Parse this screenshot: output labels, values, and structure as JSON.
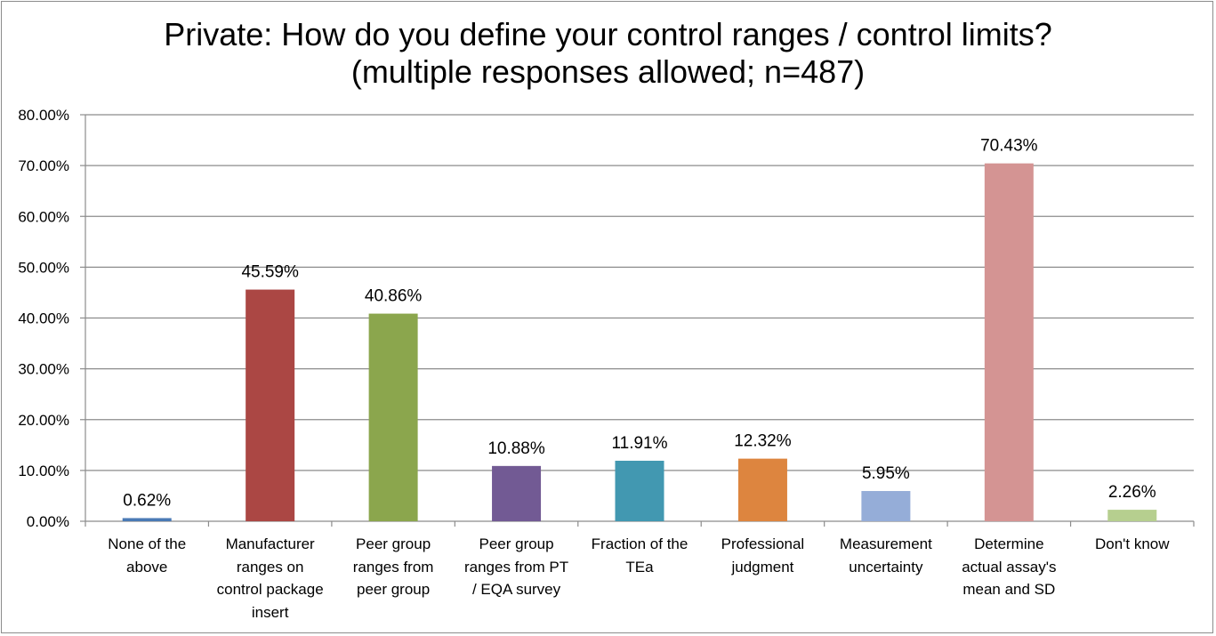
{
  "chart_data": {
    "type": "bar",
    "title_line1": "Private: How do you define your control ranges / control limits?",
    "title_line2": "(multiple responses allowed; n=487)",
    "categories": [
      [
        "None of the",
        "above"
      ],
      [
        "Manufacturer",
        "ranges on",
        "control package",
        "insert"
      ],
      [
        "Peer group",
        "ranges from",
        "peer group"
      ],
      [
        "Peer group",
        "ranges from PT",
        "/ EQA survey"
      ],
      [
        "Fraction of the",
        "TEa"
      ],
      [
        "Professional",
        "judgment"
      ],
      [
        "Measurement",
        "uncertainty"
      ],
      [
        "Determine",
        "actual assay's",
        "mean and SD"
      ],
      [
        "Don't know"
      ]
    ],
    "values": [
      0.62,
      45.59,
      40.86,
      10.88,
      11.91,
      12.32,
      5.95,
      70.43,
      2.26
    ],
    "value_labels": [
      "0.62%",
      "45.59%",
      "40.86%",
      "10.88%",
      "11.91%",
      "12.32%",
      "5.95%",
      "70.43%",
      "2.26%"
    ],
    "colors": [
      "#4a7ab5",
      "#ab4744",
      "#8ba64d",
      "#725a94",
      "#4298b1",
      "#dd853f",
      "#95add8",
      "#d49493",
      "#b6cf8f"
    ],
    "ylim": [
      0,
      80
    ],
    "yticks": [
      "0.00%",
      "10.00%",
      "20.00%",
      "30.00%",
      "40.00%",
      "50.00%",
      "60.00%",
      "70.00%",
      "80.00%"
    ],
    "grid": true,
    "xlabel": "",
    "ylabel": ""
  }
}
